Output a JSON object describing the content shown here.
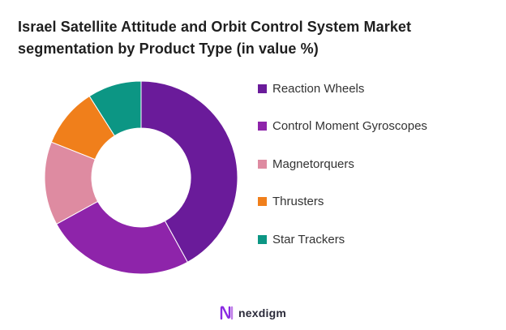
{
  "title_lines": [
    "Israel Satellite Attitude and Orbit Control System Market",
    "segmentation by Product Type (in value %)"
  ],
  "chart_data": {
    "type": "pie",
    "donut": true,
    "title": "Israel Satellite Attitude and Orbit Control System Market segmentation by Product Type (in value %)",
    "legend_placement": "right",
    "categories": [
      "Reaction Wheels",
      "Control Moment Gyroscopes",
      "Magnetorquers",
      "Thrusters",
      "Star Trackers"
    ],
    "values": [
      42,
      25,
      14,
      10,
      9
    ],
    "colors": [
      "#6a1b9a",
      "#8e24aa",
      "#de8ba1",
      "#f07f1b",
      "#0c9684"
    ]
  },
  "brand": {
    "name": "nexdigm",
    "icon": "nexdigm-logo-icon",
    "color": "#8a2be2"
  }
}
